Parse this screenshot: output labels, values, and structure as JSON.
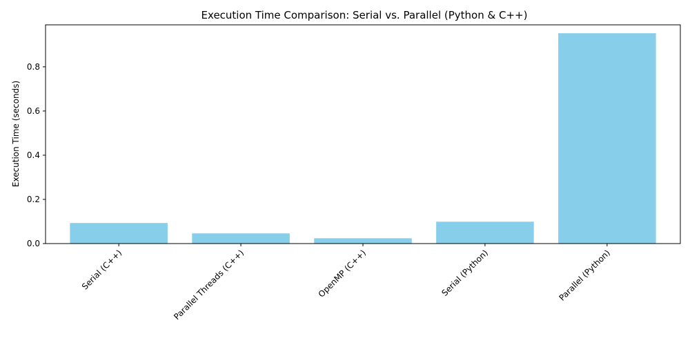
{
  "chart_data": {
    "type": "bar",
    "title": "Execution Time Comparison: Serial vs. Parallel (Python & C++)",
    "xlabel": "",
    "ylabel": "Execution Time (seconds)",
    "categories": [
      "Serial (C++)",
      "Parallel Threads (C++)",
      "OpenMP (C++)",
      "Serial (Python)",
      "Parallel (Python)"
    ],
    "values": [
      0.093,
      0.046,
      0.024,
      0.099,
      0.952
    ],
    "ylim": [
      0,
      0.99
    ],
    "yticks": [
      0.0,
      0.2,
      0.4,
      0.6,
      0.8
    ],
    "ytick_labels": [
      "0.0",
      "0.2",
      "0.4",
      "0.6",
      "0.8"
    ],
    "bar_color": "#87ceeb",
    "grid": false,
    "legend": "none",
    "xtick_rotation": "45deg"
  }
}
